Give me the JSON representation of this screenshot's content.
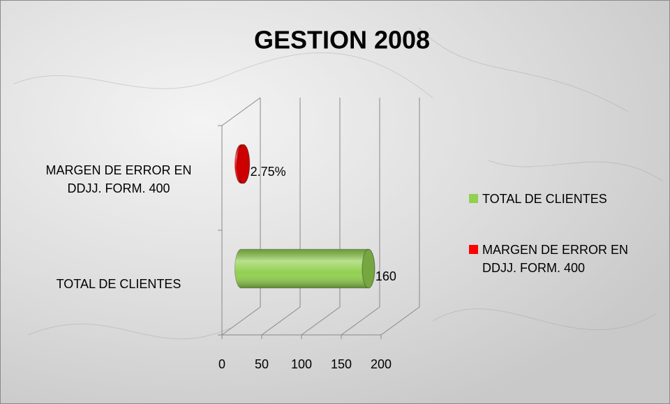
{
  "chart_data": {
    "type": "bar",
    "orientation": "horizontal",
    "title": "GESTION 2008",
    "categories": [
      "TOTAL DE CLIENTES",
      "MARGEN DE ERROR EN DDJJ. FORM. 400"
    ],
    "series": [
      {
        "name": "TOTAL DE CLIENTES",
        "color": "#92d050",
        "values": [
          160,
          null
        ]
      },
      {
        "name": "MARGEN DE ERROR EN DDJJ. FORM. 400",
        "color": "#ff0000",
        "values": [
          null,
          2.75
        ],
        "value_labels": [
          null,
          "2.75%"
        ]
      }
    ],
    "xlim": [
      0,
      200
    ],
    "xticks": [
      0,
      50,
      100,
      150,
      200
    ],
    "grid": true,
    "legend": "right"
  }
}
